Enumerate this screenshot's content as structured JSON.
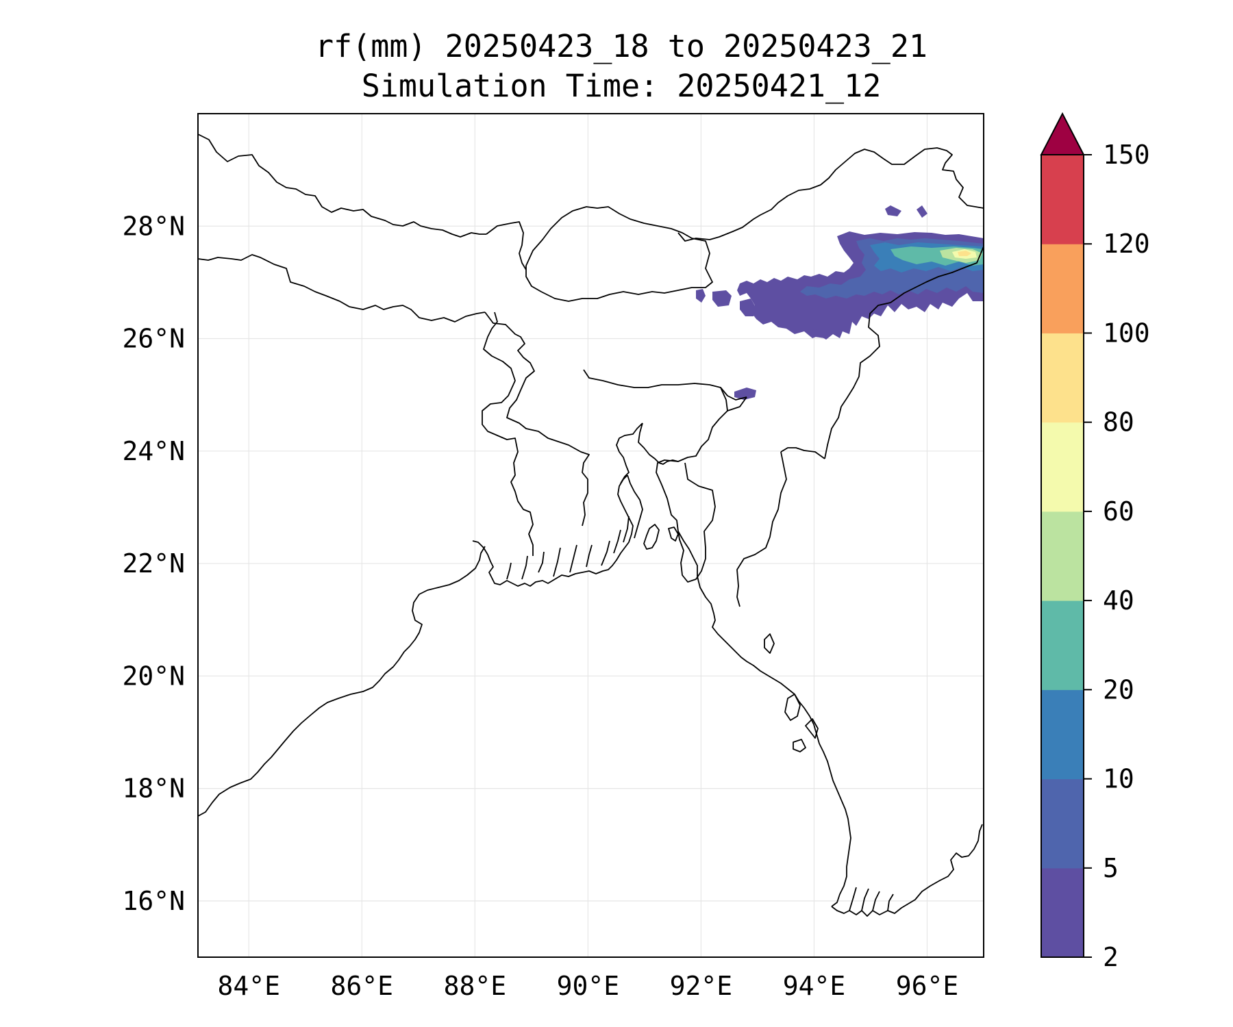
{
  "title": {
    "line1": "rf(mm) 20250423_18 to 20250423_21",
    "line2": "Simulation Time: 20250421_12"
  },
  "map": {
    "lon_range": [
      83.1,
      97.0
    ],
    "lat_range": [
      15.0,
      30.0
    ],
    "gridlines": true,
    "lon_ticks": [
      "84°E",
      "86°E",
      "88°E",
      "90°E",
      "92°E",
      "94°E",
      "96°E"
    ],
    "lat_ticks": [
      "16°N",
      "18°N",
      "20°N",
      "22°N",
      "24°N",
      "26°N",
      "28°N"
    ]
  },
  "colorbar": {
    "levels": [
      "2",
      "5",
      "10",
      "20",
      "40",
      "60",
      "80",
      "100",
      "120",
      "150"
    ],
    "colors": [
      "#5e4fa2",
      "#4f65ad",
      "#3a7fb8",
      "#5fbaa8",
      "#bbe3a0",
      "#f4faad",
      "#fde18c",
      "#f9a05c",
      "#d7404e"
    ],
    "extend_color": "#9e0142",
    "extend": "max"
  },
  "rainfall": {
    "region": "north-east India / Arunachal Pradesh",
    "max_class": "80-100"
  }
}
